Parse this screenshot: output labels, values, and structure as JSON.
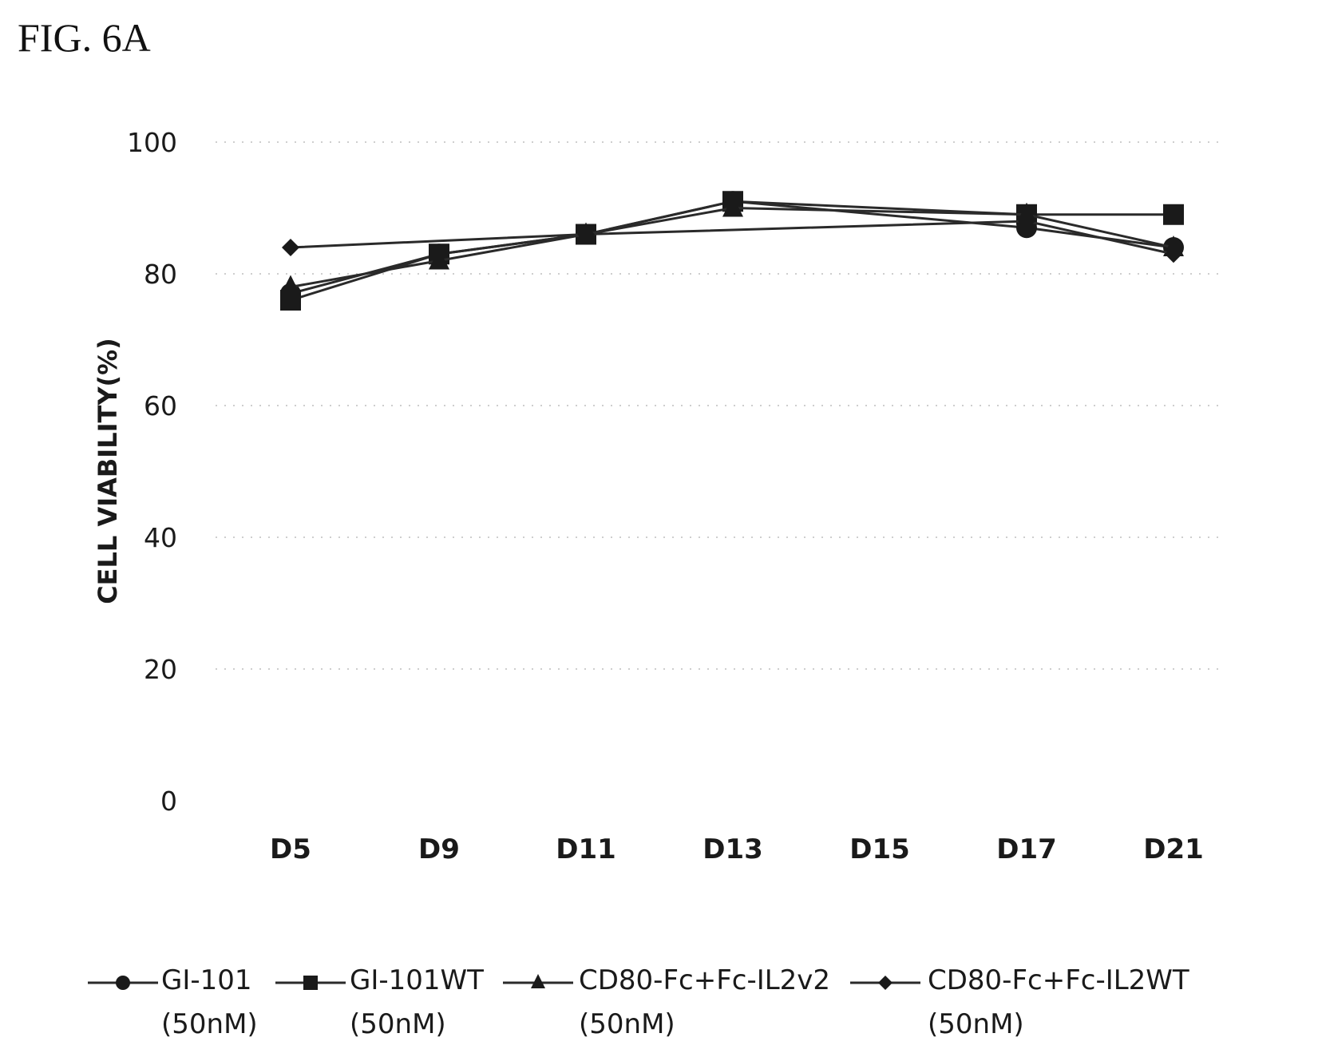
{
  "figure_label": "FIG. 6A",
  "chart_data": {
    "type": "line",
    "title": "",
    "xlabel": "",
    "ylabel": "CELL VIABILITY(%)",
    "ylim": [
      0,
      100
    ],
    "yticks": [
      0,
      20,
      40,
      60,
      80,
      100
    ],
    "grid": "horizontal-dotted",
    "legend_position": "bottom",
    "categories": [
      "D5",
      "D9",
      "D11",
      "D13",
      "D15",
      "D17",
      "D21"
    ],
    "series": [
      {
        "name": "GI-101",
        "concentration": "(50nM)",
        "marker": "circle",
        "values": [
          77,
          83,
          86,
          91,
          null,
          87,
          84
        ]
      },
      {
        "name": "GI-101WT",
        "concentration": "(50nM)",
        "marker": "square",
        "values": [
          76,
          83,
          86,
          91,
          null,
          89,
          89
        ]
      },
      {
        "name": "CD80-Fc+Fc-IL2v2",
        "concentration": "(50nM)",
        "marker": "triangle",
        "values": [
          78,
          82,
          86,
          90,
          null,
          89,
          84
        ]
      },
      {
        "name": "CD80-Fc+Fc-IL2WT",
        "concentration": "(50nM)",
        "marker": "diamond",
        "values": [
          84,
          null,
          86,
          null,
          null,
          88,
          83
        ]
      }
    ]
  }
}
